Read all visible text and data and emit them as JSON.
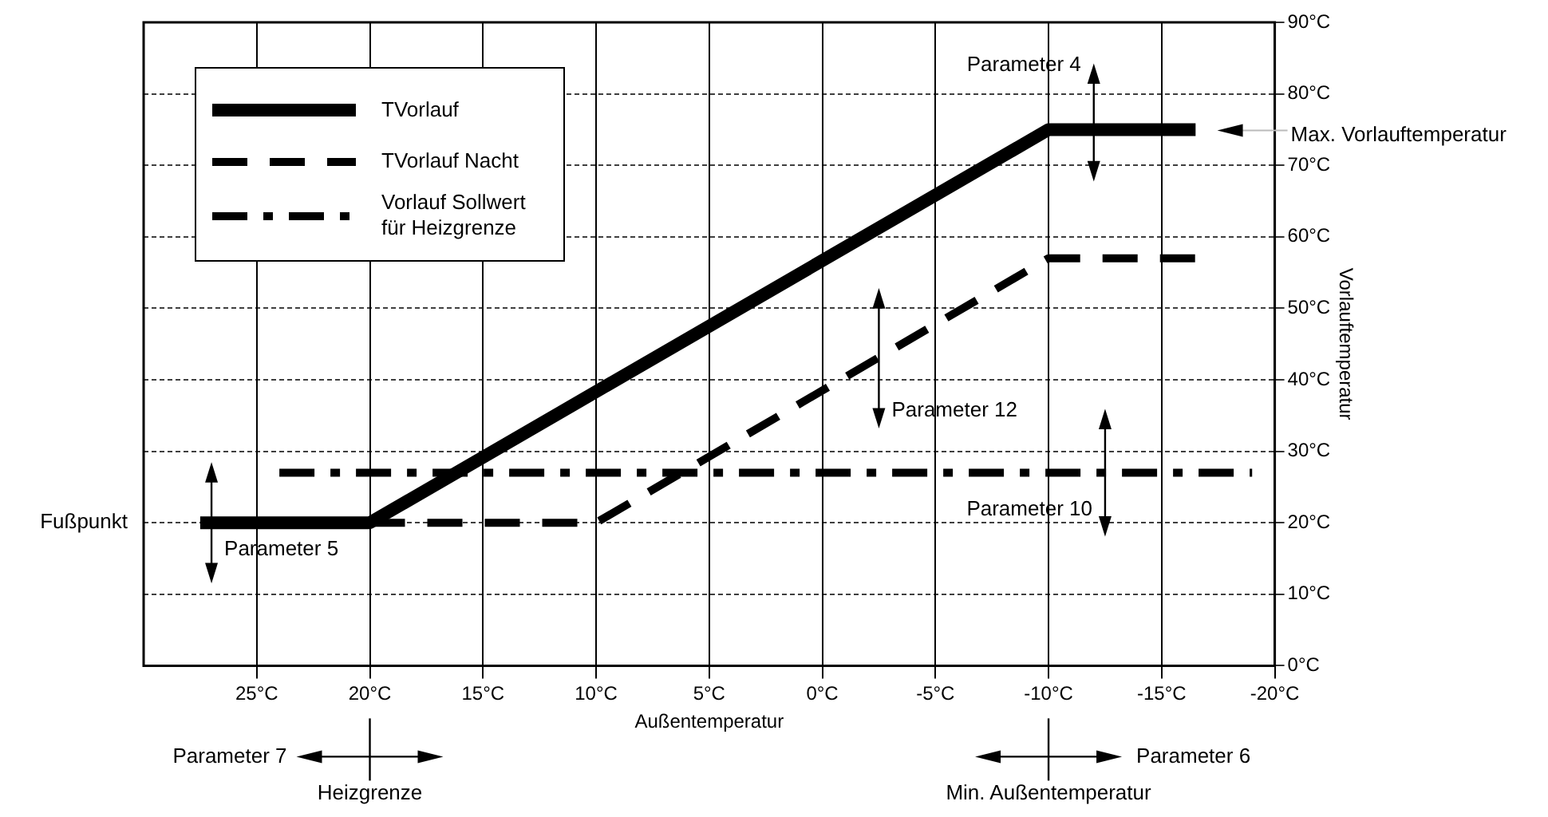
{
  "chart_data": {
    "type": "line",
    "xlabel": "Außentemperatur",
    "ylabel": "Vorlauftemperatur",
    "xlim": [
      30,
      -20
    ],
    "xticks": [
      {
        "value": 25,
        "label": "25°C"
      },
      {
        "value": 20,
        "label": "20°C"
      },
      {
        "value": 15,
        "label": "15°C"
      },
      {
        "value": 10,
        "label": "10°C"
      },
      {
        "value": 5,
        "label": "5°C"
      },
      {
        "value": 0,
        "label": "0°C"
      },
      {
        "value": -5,
        "label": "-5°C"
      },
      {
        "value": -10,
        "label": "-10°C"
      },
      {
        "value": -15,
        "label": "-15°C"
      },
      {
        "value": -20,
        "label": "-20°C"
      }
    ],
    "ylim": [
      0,
      90
    ],
    "yticks": [
      {
        "value": 0,
        "label": "0°C"
      },
      {
        "value": 10,
        "label": "10°C"
      },
      {
        "value": 20,
        "label": "20°C"
      },
      {
        "value": 30,
        "label": "30°C"
      },
      {
        "value": 40,
        "label": "40°C"
      },
      {
        "value": 50,
        "label": "50°C"
      },
      {
        "value": 60,
        "label": "60°C"
      },
      {
        "value": 70,
        "label": "70°C"
      },
      {
        "value": 80,
        "label": "80°C"
      },
      {
        "value": 90,
        "label": "90°C"
      }
    ],
    "grid": true,
    "legend": "top left",
    "marker": "none",
    "series": [
      {
        "name": "TVorlauf",
        "color": "#000000",
        "line_style": "solid",
        "x": [
          27.5,
          20,
          -10,
          -16.5
        ],
        "values": [
          20,
          20,
          75,
          75
        ]
      },
      {
        "name": "TVorlauf Nacht",
        "color": "#000000",
        "line_style": "dashed",
        "x": [
          20,
          10,
          -10,
          -16.5
        ],
        "values": [
          20,
          20,
          57,
          57
        ]
      },
      {
        "name": "Vorlauf Sollwert für Heizgrenze",
        "color": "#000000",
        "line_style": "dashdot",
        "x": [
          24,
          -19
        ],
        "values": [
          27,
          27
        ]
      }
    ],
    "annotations": [
      "Fußpunkt",
      {
        "text": "Parameter 5",
        "x": 27,
        "y": 20
      },
      {
        "text": "Parameter 4",
        "x": -12,
        "y": 76
      },
      {
        "text": "Parameter 12",
        "x": -2.5,
        "y": 43
      },
      {
        "text": "Parameter 10",
        "x": -12.5,
        "y": 27
      },
      "Max. Vorlauftemperatur",
      "Parameter 7",
      {
        "text": "Heizgrenze",
        "x": 20
      },
      "Parameter 6",
      {
        "text": "Min. Außentemperatur",
        "x": -10
      }
    ]
  }
}
